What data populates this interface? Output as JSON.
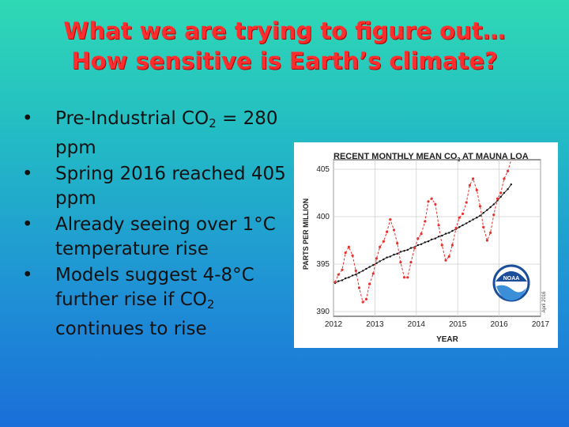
{
  "slide": {
    "title_line1": "What we are trying to figure out…",
    "title_line2": "How sensitive is Earth’s climate?",
    "bullets": [
      {
        "pre": "Pre-Industrial CO",
        "sub": "2",
        "post": " = 280 ppm"
      },
      {
        "pre": "Spring 2016 reached 405 ppm",
        "sub": "",
        "post": ""
      },
      {
        "pre": "Already seeing over 1°C temperature rise",
        "sub": "",
        "post": ""
      },
      {
        "pre": "Models suggest 4-8°C further rise if CO",
        "sub": "2",
        "post": " continues to rise"
      }
    ]
  },
  "chart_data": {
    "type": "line",
    "title_pre": "RECENT MONTHLY MEAN CO",
    "title_sub": "2",
    "title_post": " AT MAUNA LOA",
    "xlabel": "YEAR",
    "ylabel": "PARTS PER MILLION",
    "xlim": [
      2012,
      2017
    ],
    "ylim": [
      389.5,
      406
    ],
    "xticks": [
      2012,
      2013,
      2014,
      2015,
      2016,
      2017
    ],
    "yticks": [
      390,
      395,
      400,
      405
    ],
    "logo_text": "NOAA",
    "date_label": "April 2016",
    "colors": {
      "monthly": "#e8322e",
      "trend": "#111111"
    },
    "series": [
      {
        "kind": "monthly",
        "x": [
          2012.04,
          2012.12,
          2012.21,
          2012.29,
          2012.37,
          2012.46,
          2012.54,
          2012.62,
          2012.71,
          2012.79,
          2012.87,
          2012.96,
          2013.04,
          2013.12,
          2013.21,
          2013.29,
          2013.37,
          2013.46,
          2013.54,
          2013.62,
          2013.71,
          2013.79,
          2013.87,
          2013.96,
          2014.04,
          2014.12,
          2014.21,
          2014.29,
          2014.37,
          2014.46,
          2014.54,
          2014.62,
          2014.71,
          2014.79,
          2014.87,
          2014.96,
          2015.04,
          2015.12,
          2015.21,
          2015.29,
          2015.37,
          2015.46,
          2015.54,
          2015.62,
          2015.71,
          2015.79,
          2015.87,
          2015.96,
          2016.04,
          2016.12,
          2016.21,
          2016.29
        ],
        "values": [
          393.1,
          393.9,
          394.4,
          396.2,
          396.8,
          395.9,
          394.3,
          392.5,
          391.0,
          391.3,
          392.9,
          394.0,
          395.6,
          396.8,
          397.4,
          398.4,
          399.7,
          398.6,
          397.2,
          395.2,
          393.6,
          393.6,
          395.2,
          396.7,
          397.7,
          398.2,
          399.5,
          401.6,
          401.9,
          401.3,
          399.1,
          397.0,
          395.4,
          395.8,
          397.0,
          398.8,
          399.9,
          400.3,
          401.5,
          403.3,
          404.0,
          402.8,
          401.1,
          398.9,
          397.5,
          398.3,
          400.2,
          401.9,
          402.5,
          404.0,
          404.8,
          407.4
        ]
      },
      {
        "kind": "trend",
        "x": [
          2012.04,
          2012.12,
          2012.21,
          2012.29,
          2012.37,
          2012.46,
          2012.54,
          2012.62,
          2012.71,
          2012.79,
          2012.87,
          2012.96,
          2013.04,
          2013.12,
          2013.21,
          2013.29,
          2013.37,
          2013.46,
          2013.54,
          2013.62,
          2013.71,
          2013.79,
          2013.87,
          2013.96,
          2014.04,
          2014.12,
          2014.21,
          2014.29,
          2014.37,
          2014.46,
          2014.54,
          2014.62,
          2014.71,
          2014.79,
          2014.87,
          2014.96,
          2015.04,
          2015.12,
          2015.21,
          2015.29,
          2015.37,
          2015.46,
          2015.54,
          2015.62,
          2015.71,
          2015.79,
          2015.87,
          2015.96,
          2016.04,
          2016.12,
          2016.21,
          2016.29
        ],
        "values": [
          393.0,
          393.2,
          393.3,
          393.5,
          393.6,
          393.8,
          393.9,
          394.1,
          394.3,
          394.5,
          394.7,
          394.9,
          395.1,
          395.3,
          395.5,
          395.7,
          395.8,
          396.0,
          396.1,
          396.3,
          396.4,
          396.5,
          396.7,
          396.8,
          397.0,
          397.1,
          397.3,
          397.4,
          397.6,
          397.7,
          397.9,
          398.0,
          398.2,
          398.3,
          398.5,
          398.7,
          398.9,
          399.1,
          399.3,
          399.5,
          399.7,
          399.9,
          400.1,
          400.4,
          400.7,
          401.0,
          401.3,
          401.7,
          402.1,
          402.5,
          402.9,
          403.4
        ]
      }
    ]
  }
}
